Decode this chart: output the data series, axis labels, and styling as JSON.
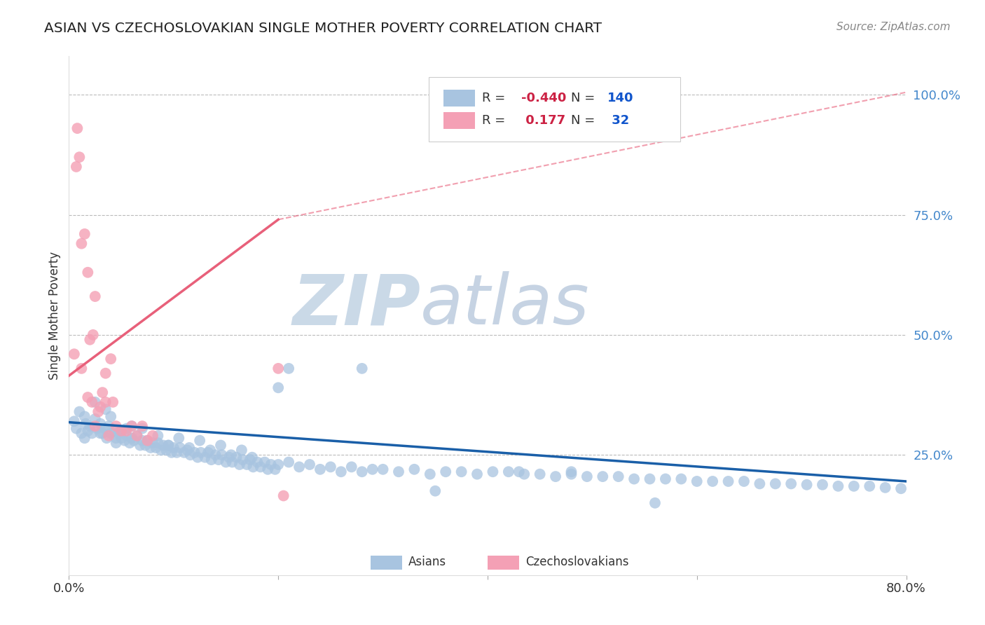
{
  "title": "ASIAN VS CZECHOSLOVAKIAN SINGLE MOTHER POVERTY CORRELATION CHART",
  "source": "Source: ZipAtlas.com",
  "ylabel": "Single Mother Poverty",
  "xlim": [
    0.0,
    0.8
  ],
  "ylim": [
    0.0,
    1.08
  ],
  "yticks": [
    0.25,
    0.5,
    0.75,
    1.0
  ],
  "ytick_labels": [
    "25.0%",
    "50.0%",
    "75.0%",
    "100.0%"
  ],
  "xticks": [
    0.0,
    0.2,
    0.4,
    0.6,
    0.8
  ],
  "xtick_labels": [
    "0.0%",
    "",
    "",
    "",
    "80.0%"
  ],
  "legend_r_asian": "-0.440",
  "legend_n_asian": "140",
  "legend_r_czech": " 0.177",
  "legend_n_czech": " 32",
  "asian_color": "#a8c4e0",
  "czech_color": "#f4a0b5",
  "asian_line_color": "#1a5fa8",
  "czech_line_color": "#e8607a",
  "watermark_zip": "ZIP",
  "watermark_atlas": "atlas",
  "watermark_color_zip": "#c5d5e5",
  "watermark_color_atlas": "#c0cfe0",
  "asian_scatter_x": [
    0.005,
    0.007,
    0.01,
    0.012,
    0.015,
    0.016,
    0.018,
    0.02,
    0.022,
    0.025,
    0.027,
    0.03,
    0.032,
    0.034,
    0.036,
    0.038,
    0.04,
    0.043,
    0.045,
    0.047,
    0.05,
    0.053,
    0.055,
    0.058,
    0.06,
    0.062,
    0.065,
    0.068,
    0.07,
    0.073,
    0.075,
    0.078,
    0.08,
    0.083,
    0.085,
    0.088,
    0.09,
    0.093,
    0.095,
    0.098,
    0.1,
    0.103,
    0.106,
    0.11,
    0.113,
    0.116,
    0.12,
    0.123,
    0.126,
    0.13,
    0.133,
    0.136,
    0.14,
    0.143,
    0.146,
    0.15,
    0.153,
    0.156,
    0.16,
    0.163,
    0.166,
    0.17,
    0.173,
    0.176,
    0.18,
    0.183,
    0.187,
    0.19,
    0.193,
    0.197,
    0.2,
    0.21,
    0.22,
    0.23,
    0.24,
    0.25,
    0.26,
    0.27,
    0.28,
    0.29,
    0.3,
    0.315,
    0.33,
    0.345,
    0.36,
    0.375,
    0.39,
    0.405,
    0.42,
    0.435,
    0.45,
    0.465,
    0.48,
    0.495,
    0.51,
    0.525,
    0.54,
    0.555,
    0.57,
    0.585,
    0.6,
    0.615,
    0.63,
    0.645,
    0.66,
    0.675,
    0.69,
    0.705,
    0.72,
    0.735,
    0.75,
    0.765,
    0.78,
    0.795,
    0.025,
    0.03,
    0.04,
    0.015,
    0.05,
    0.06,
    0.07,
    0.035,
    0.045,
    0.055,
    0.085,
    0.095,
    0.105,
    0.115,
    0.125,
    0.135,
    0.145,
    0.155,
    0.165,
    0.175,
    0.21,
    0.35,
    0.43,
    0.2,
    0.28,
    0.48,
    0.56
  ],
  "asian_scatter_y": [
    0.32,
    0.305,
    0.34,
    0.295,
    0.33,
    0.315,
    0.3,
    0.31,
    0.295,
    0.325,
    0.305,
    0.315,
    0.295,
    0.305,
    0.285,
    0.31,
    0.295,
    0.3,
    0.285,
    0.295,
    0.3,
    0.28,
    0.29,
    0.275,
    0.285,
    0.28,
    0.29,
    0.27,
    0.28,
    0.27,
    0.28,
    0.265,
    0.275,
    0.265,
    0.275,
    0.26,
    0.27,
    0.26,
    0.27,
    0.255,
    0.265,
    0.255,
    0.265,
    0.255,
    0.26,
    0.25,
    0.255,
    0.245,
    0.255,
    0.245,
    0.255,
    0.24,
    0.25,
    0.24,
    0.25,
    0.235,
    0.245,
    0.235,
    0.245,
    0.23,
    0.24,
    0.23,
    0.24,
    0.225,
    0.235,
    0.225,
    0.235,
    0.22,
    0.23,
    0.22,
    0.23,
    0.235,
    0.225,
    0.23,
    0.22,
    0.225,
    0.215,
    0.225,
    0.215,
    0.22,
    0.22,
    0.215,
    0.22,
    0.21,
    0.215,
    0.215,
    0.21,
    0.215,
    0.215,
    0.21,
    0.21,
    0.205,
    0.21,
    0.205,
    0.205,
    0.205,
    0.2,
    0.2,
    0.2,
    0.2,
    0.195,
    0.195,
    0.195,
    0.195,
    0.19,
    0.19,
    0.19,
    0.188,
    0.188,
    0.185,
    0.185,
    0.185,
    0.182,
    0.18,
    0.36,
    0.295,
    0.33,
    0.285,
    0.285,
    0.31,
    0.305,
    0.345,
    0.275,
    0.305,
    0.29,
    0.27,
    0.285,
    0.265,
    0.28,
    0.26,
    0.27,
    0.25,
    0.26,
    0.245,
    0.43,
    0.175,
    0.215,
    0.39,
    0.43,
    0.215,
    0.15
  ],
  "czech_scatter_x": [
    0.005,
    0.007,
    0.01,
    0.012,
    0.015,
    0.018,
    0.02,
    0.023,
    0.025,
    0.012,
    0.018,
    0.022,
    0.028,
    0.032,
    0.008,
    0.03,
    0.035,
    0.04,
    0.045,
    0.05,
    0.055,
    0.06,
    0.065,
    0.07,
    0.075,
    0.08,
    0.035,
    0.025,
    0.042,
    0.038,
    0.2,
    0.205
  ],
  "czech_scatter_y": [
    0.46,
    0.85,
    0.87,
    0.69,
    0.71,
    0.63,
    0.49,
    0.5,
    0.58,
    0.43,
    0.37,
    0.36,
    0.34,
    0.38,
    0.93,
    0.35,
    0.36,
    0.45,
    0.31,
    0.3,
    0.3,
    0.31,
    0.29,
    0.31,
    0.28,
    0.29,
    0.42,
    0.31,
    0.36,
    0.29,
    0.43,
    0.165
  ],
  "czech_line_x0": 0.0,
  "czech_line_y0": 0.415,
  "czech_line_x1": 0.2,
  "czech_line_y1": 0.74,
  "czech_line_x2": 0.8,
  "czech_line_y2": 1.005,
  "asian_line_x0": 0.0,
  "asian_line_y0": 0.318,
  "asian_line_x1": 0.8,
  "asian_line_y1": 0.195
}
